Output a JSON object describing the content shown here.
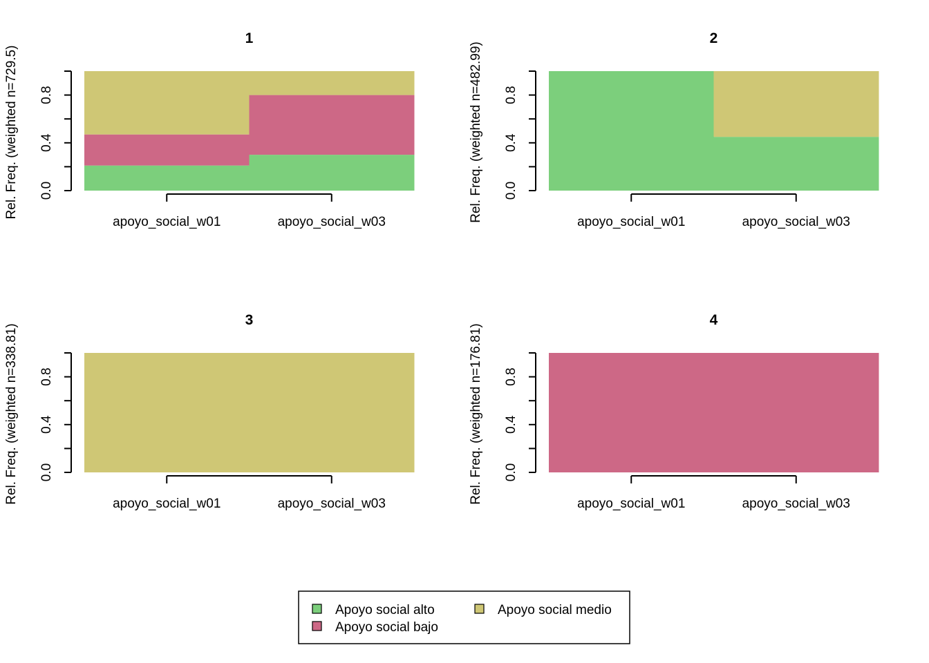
{
  "legend": {
    "items": [
      {
        "label": "Apoyo social alto",
        "color": "#7ccf7c"
      },
      {
        "label": "Apoyo social bajo",
        "color": "#cd6886"
      },
      {
        "label": "Apoyo social medio",
        "color": "#cfc775"
      }
    ]
  },
  "chart_data": [
    {
      "type": "bar",
      "stacked": true,
      "title": "1",
      "ylabel": "Rel. Freq. (weighted n=729.5)",
      "categories": [
        "apoyo_social_w01",
        "apoyo_social_w03"
      ],
      "yticks": [
        "0.0",
        "0.4",
        "0.8"
      ],
      "ylim": [
        0,
        1
      ],
      "series": [
        {
          "name": "Apoyo social alto",
          "values": [
            0.21,
            0.3
          ]
        },
        {
          "name": "Apoyo social bajo",
          "values": [
            0.26,
            0.5
          ]
        },
        {
          "name": "Apoyo social medio",
          "values": [
            0.53,
            0.2
          ]
        }
      ]
    },
    {
      "type": "bar",
      "stacked": true,
      "title": "2",
      "ylabel": "Rel. Freq. (weighted n=482.99)",
      "categories": [
        "apoyo_social_w01",
        "apoyo_social_w03"
      ],
      "yticks": [
        "0.0",
        "0.4",
        "0.8"
      ],
      "ylim": [
        0,
        1
      ],
      "series": [
        {
          "name": "Apoyo social alto",
          "values": [
            1.0,
            0.45
          ]
        },
        {
          "name": "Apoyo social bajo",
          "values": [
            0.0,
            0.0
          ]
        },
        {
          "name": "Apoyo social medio",
          "values": [
            0.0,
            0.55
          ]
        }
      ]
    },
    {
      "type": "bar",
      "stacked": true,
      "title": "3",
      "ylabel": "Rel. Freq. (weighted n=338.81)",
      "categories": [
        "apoyo_social_w01",
        "apoyo_social_w03"
      ],
      "yticks": [
        "0.0",
        "0.4",
        "0.8"
      ],
      "ylim": [
        0,
        1
      ],
      "series": [
        {
          "name": "Apoyo social alto",
          "values": [
            0.0,
            0.0
          ]
        },
        {
          "name": "Apoyo social bajo",
          "values": [
            0.0,
            0.0
          ]
        },
        {
          "name": "Apoyo social medio",
          "values": [
            1.0,
            1.0
          ]
        }
      ]
    },
    {
      "type": "bar",
      "stacked": true,
      "title": "4",
      "ylabel": "Rel. Freq. (weighted n=176.81)",
      "categories": [
        "apoyo_social_w01",
        "apoyo_social_w03"
      ],
      "yticks": [
        "0.0",
        "0.4",
        "0.8"
      ],
      "ylim": [
        0,
        1
      ],
      "series": [
        {
          "name": "Apoyo social alto",
          "values": [
            0.0,
            0.0
          ]
        },
        {
          "name": "Apoyo social bajo",
          "values": [
            1.0,
            1.0
          ]
        },
        {
          "name": "Apoyo social medio",
          "values": [
            0.0,
            0.0
          ]
        }
      ]
    }
  ]
}
